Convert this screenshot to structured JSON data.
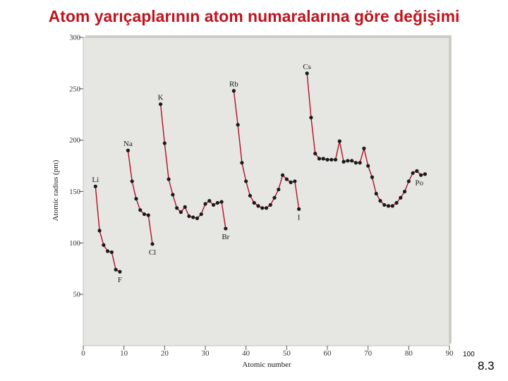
{
  "slide": {
    "title": "Atom yarıçaplarının atom numaralarına göre değişimi",
    "slide_number": "8.3",
    "corner_label": "100"
  },
  "colors": {
    "title": "#c0141e",
    "plot_bg": "#e6e6e2",
    "line": "#b0102a",
    "marker": "#1a1a1a"
  },
  "chart_data": {
    "type": "line",
    "title": "",
    "xlabel": "Atomic number",
    "ylabel": "Atomic radius (pm)",
    "xlim": [
      0,
      90
    ],
    "ylim": [
      0,
      300
    ],
    "xticks": [
      0,
      10,
      20,
      30,
      40,
      50,
      60,
      70,
      80,
      90
    ],
    "yticks": [
      50,
      100,
      150,
      200,
      250,
      300
    ],
    "grid": "y-major-ticks-only",
    "segments": [
      {
        "x": [
          3,
          4,
          5,
          6,
          7,
          8,
          9
        ],
        "y": [
          155,
          112,
          98,
          92,
          91,
          74,
          72
        ]
      },
      {
        "x": [
          11,
          12,
          13,
          14,
          15,
          16,
          17
        ],
        "y": [
          190,
          160,
          143,
          132,
          128,
          127,
          99
        ]
      },
      {
        "x": [
          19,
          20,
          21,
          22,
          23,
          24,
          25,
          26,
          27,
          28,
          29,
          30,
          31,
          32,
          33,
          34,
          35
        ],
        "y": [
          235,
          197,
          162,
          147,
          134,
          130,
          135,
          126,
          125,
          124,
          128,
          138,
          141,
          137,
          139,
          140,
          114
        ]
      },
      {
        "x": [
          37,
          38,
          39,
          40,
          41,
          42,
          43,
          44,
          45,
          46,
          47,
          48,
          49,
          50,
          51,
          52,
          53
        ],
        "y": [
          248,
          215,
          178,
          160,
          146,
          139,
          136,
          134,
          134,
          137,
          144,
          152,
          166,
          162,
          159,
          160,
          133
        ]
      },
      {
        "x": [
          55,
          56,
          57,
          58,
          59,
          60,
          61,
          62,
          63,
          64,
          65,
          66,
          67,
          68,
          69,
          70,
          71,
          72,
          73,
          74,
          75,
          76,
          77,
          78,
          79,
          80,
          81,
          82,
          83,
          84
        ],
        "y": [
          265,
          222,
          187,
          182,
          182,
          181,
          181,
          181,
          199,
          179,
          180,
          180,
          178,
          178,
          192,
          175,
          164,
          148,
          141,
          137,
          136,
          136,
          139,
          144,
          150,
          160,
          168,
          170,
          166,
          167
        ]
      }
    ],
    "annotations": [
      {
        "text": "Li",
        "x": 3
      },
      {
        "text": "Na",
        "x": 11
      },
      {
        "text": "K",
        "x": 19
      },
      {
        "text": "Rb",
        "x": 37
      },
      {
        "text": "Cs",
        "x": 55
      },
      {
        "text": "F",
        "x": 9
      },
      {
        "text": "Cl",
        "x": 17
      },
      {
        "text": "Br",
        "x": 35
      },
      {
        "text": "I",
        "x": 53
      },
      {
        "text": "Po",
        "x": 84
      }
    ]
  }
}
